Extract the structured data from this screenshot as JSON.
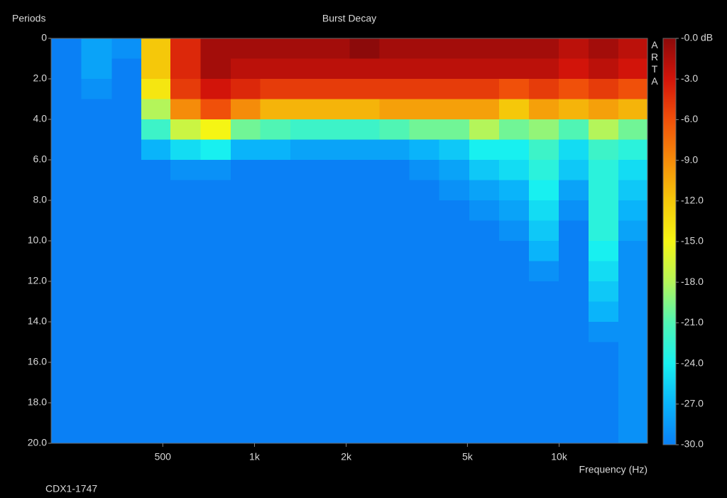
{
  "chart_data": {
    "type": "heatmap",
    "title": "Burst Decay",
    "y_label": "Periods",
    "x_label": "Frequency (Hz)",
    "footnote": "CDX1-1747",
    "watermark": "ARTA",
    "log_x": true,
    "y_inverted": true,
    "xlim": [
      215,
      19500
    ],
    "ylim": [
      0,
      20
    ],
    "xticks": [
      500,
      {
        "value": 1000,
        "label": "1k"
      },
      {
        "value": 2000,
        "label": "2k"
      },
      {
        "value": 5000,
        "label": "5k"
      },
      {
        "value": 10000,
        "label": "10k"
      }
    ],
    "yticks": [
      0,
      {
        "value": 2,
        "label": "2.0"
      },
      {
        "value": 4,
        "label": "4.0"
      },
      {
        "value": 6,
        "label": "6.0"
      },
      {
        "value": 8,
        "label": "8.0"
      },
      {
        "value": 10,
        "label": "10.0"
      },
      {
        "value": 12,
        "label": "12.0"
      },
      {
        "value": 14,
        "label": "14.0"
      },
      {
        "value": 16,
        "label": "16.0"
      },
      {
        "value": 18,
        "label": "18.0"
      },
      {
        "value": 20,
        "label": "20.0"
      }
    ],
    "zlim": [
      -30,
      0
    ],
    "zticks": [
      {
        "value": 0,
        "label": "-0.0 dB"
      },
      {
        "value": -3,
        "label": "-3.0"
      },
      {
        "value": -6,
        "label": "-6.0"
      },
      {
        "value": -9,
        "label": "-9.0"
      },
      {
        "value": -12,
        "label": "-12.0"
      },
      {
        "value": -15,
        "label": "-15.0"
      },
      {
        "value": -18,
        "label": "-18.0"
      },
      {
        "value": -21,
        "label": "-21.0"
      },
      {
        "value": -24,
        "label": "-24.0"
      },
      {
        "value": -27,
        "label": "-27.0"
      },
      {
        "value": -30,
        "label": "-30.0"
      }
    ],
    "colormap": [
      "#0a80f5",
      "#0ab4fa",
      "#18f0f0",
      "#50f5b4",
      "#b4f55a",
      "#f5f514",
      "#f5c80a",
      "#f58c0a",
      "#f0500a",
      "#d2140a",
      "#8c0a0a"
    ],
    "x_edges": [
      215,
      270,
      340,
      425,
      530,
      665,
      835,
      1045,
      1310,
      1640,
      2055,
      2575,
      3225,
      4040,
      5065,
      6345,
      7950,
      9965,
      12485,
      15645,
      19500
    ],
    "y_edges": [
      0,
      1,
      2,
      3,
      4,
      5,
      6,
      7,
      8,
      9,
      10,
      11,
      12,
      13,
      14,
      15,
      16,
      17,
      18,
      19,
      20
    ],
    "z": [
      [
        -30,
        -28,
        -29,
        -12,
        -4,
        -1,
        -1,
        -1,
        -1,
        -1,
        0,
        -1,
        -1,
        -1,
        -1,
        -1,
        -1,
        -2,
        -1,
        -2
      ],
      [
        -30,
        -28,
        -30,
        -12,
        -4,
        -1,
        -2,
        -2,
        -2,
        -2,
        -2,
        -2,
        -2,
        -2,
        -2,
        -2,
        -2,
        -3,
        -2,
        -3
      ],
      [
        -30,
        -29,
        -30,
        -14,
        -5,
        -3,
        -4,
        -5,
        -5,
        -5,
        -5,
        -5,
        -5,
        -5,
        -5,
        -6,
        -5,
        -6,
        -5,
        -6
      ],
      [
        -30,
        -30,
        -30,
        -18,
        -9,
        -6,
        -9,
        -11,
        -11,
        -11,
        -11,
        -10,
        -10,
        -10,
        -10,
        -12,
        -10,
        -11,
        -10,
        -11
      ],
      [
        -30,
        -30,
        -30,
        -22,
        -17,
        -15,
        -20,
        -21,
        -22,
        -22,
        -22,
        -21,
        -20,
        -20,
        -18,
        -20,
        -19,
        -21,
        -18,
        -20
      ],
      [
        -30,
        -30,
        -30,
        -27,
        -25,
        -24,
        -27,
        -27,
        -28,
        -28,
        -28,
        -28,
        -27,
        -26,
        -24,
        -24,
        -22,
        -25,
        -22,
        -23
      ],
      [
        -30,
        -30,
        -30,
        -30,
        -29,
        -29,
        -30,
        -30,
        -30,
        -30,
        -30,
        -30,
        -29,
        -28,
        -26,
        -25,
        -23,
        -26,
        -23,
        -25
      ],
      [
        -30,
        -30,
        -30,
        -30,
        -30,
        -30,
        -30,
        -30,
        -30,
        -30,
        -30,
        -30,
        -30,
        -29,
        -28,
        -27,
        -24,
        -28,
        -23,
        -26
      ],
      [
        -30,
        -30,
        -30,
        -30,
        -30,
        -30,
        -30,
        -30,
        -30,
        -30,
        -30,
        -30,
        -30,
        -30,
        -29,
        -28,
        -25,
        -29,
        -23,
        -27
      ],
      [
        -30,
        -30,
        -30,
        -30,
        -30,
        -30,
        -30,
        -30,
        -30,
        -30,
        -30,
        -30,
        -30,
        -30,
        -30,
        -29,
        -26,
        -30,
        -23,
        -28
      ],
      [
        -30,
        -30,
        -30,
        -30,
        -30,
        -30,
        -30,
        -30,
        -30,
        -30,
        -30,
        -30,
        -30,
        -30,
        -30,
        -30,
        -27,
        -30,
        -24,
        -29
      ],
      [
        -30,
        -30,
        -30,
        -30,
        -30,
        -30,
        -30,
        -30,
        -30,
        -30,
        -30,
        -30,
        -30,
        -30,
        -30,
        -30,
        -29,
        -30,
        -25,
        -29
      ],
      [
        -30,
        -30,
        -30,
        -30,
        -30,
        -30,
        -30,
        -30,
        -30,
        -30,
        -30,
        -30,
        -30,
        -30,
        -30,
        -30,
        -30,
        -30,
        -26,
        -29
      ],
      [
        -30,
        -30,
        -30,
        -30,
        -30,
        -30,
        -30,
        -30,
        -30,
        -30,
        -30,
        -30,
        -30,
        -30,
        -30,
        -30,
        -30,
        -30,
        -27,
        -29
      ],
      [
        -30,
        -30,
        -30,
        -30,
        -30,
        -30,
        -30,
        -30,
        -30,
        -30,
        -30,
        -30,
        -30,
        -30,
        -30,
        -30,
        -30,
        -30,
        -29,
        -29
      ],
      [
        -30,
        -30,
        -30,
        -30,
        -30,
        -30,
        -30,
        -30,
        -30,
        -30,
        -30,
        -30,
        -30,
        -30,
        -30,
        -30,
        -30,
        -30,
        -30,
        -29
      ],
      [
        -30,
        -30,
        -30,
        -30,
        -30,
        -30,
        -30,
        -30,
        -30,
        -30,
        -30,
        -30,
        -30,
        -30,
        -30,
        -30,
        -30,
        -30,
        -30,
        -29
      ],
      [
        -30,
        -30,
        -30,
        -30,
        -30,
        -30,
        -30,
        -30,
        -30,
        -30,
        -30,
        -30,
        -30,
        -30,
        -30,
        -30,
        -30,
        -30,
        -30,
        -29
      ],
      [
        -30,
        -30,
        -30,
        -30,
        -30,
        -30,
        -30,
        -30,
        -30,
        -30,
        -30,
        -30,
        -30,
        -30,
        -30,
        -30,
        -30,
        -30,
        -30,
        -29
      ],
      [
        -30,
        -30,
        -30,
        -30,
        -30,
        -30,
        -30,
        -30,
        -30,
        -30,
        -30,
        -30,
        -30,
        -30,
        -30,
        -30,
        -30,
        -30,
        -30,
        -29
      ]
    ]
  }
}
